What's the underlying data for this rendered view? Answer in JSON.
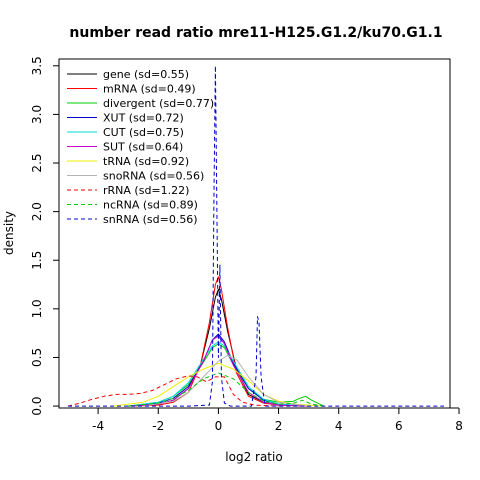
{
  "chart_data": {
    "type": "line",
    "title": "number read ratio mre11-H125.G1.2/ku70.G1.1",
    "xlabel": "log2 ratio",
    "ylabel": "density",
    "xlim": [
      -5.3,
      7.7
    ],
    "ylim": [
      -0.02,
      3.57
    ],
    "xticks": [
      -4,
      -2,
      0,
      2,
      4,
      6,
      8
    ],
    "yticks": [
      0.0,
      0.5,
      1.0,
      1.5,
      2.0,
      2.5,
      3.0,
      3.5
    ],
    "xtick_labels": [
      "-4",
      "-2",
      "0",
      "2",
      "4",
      "6",
      "8"
    ],
    "ytick_labels": [
      "0.0",
      "0.5",
      "1.0",
      "1.5",
      "2.0",
      "2.5",
      "3.0",
      "3.5"
    ],
    "grid": false,
    "legend_position": "top-left",
    "series": [
      {
        "name": "gene (sd=0.55)",
        "color": "#000000",
        "dash": "solid",
        "x": [
          -3.0,
          -2.0,
          -1.5,
          -1.0,
          -0.6,
          -0.3,
          -0.1,
          0.0,
          0.1,
          0.3,
          0.6,
          1.0,
          1.5,
          2.0,
          3.0
        ],
        "y": [
          0.0,
          0.02,
          0.06,
          0.18,
          0.42,
          0.8,
          1.12,
          1.2,
          1.1,
          0.78,
          0.38,
          0.12,
          0.04,
          0.01,
          0.0
        ]
      },
      {
        "name": "mRNA (sd=0.49)",
        "color": "#ff0000",
        "dash": "solid",
        "x": [
          -3.0,
          -2.0,
          -1.5,
          -1.0,
          -0.6,
          -0.3,
          -0.1,
          0.0,
          0.1,
          0.3,
          0.6,
          1.0,
          1.5,
          2.0,
          3.0
        ],
        "y": [
          0.0,
          0.01,
          0.04,
          0.14,
          0.42,
          0.86,
          1.25,
          1.33,
          1.2,
          0.82,
          0.34,
          0.1,
          0.03,
          0.01,
          0.0
        ]
      },
      {
        "name": "divergent (sd=0.77)",
        "color": "#00cc00",
        "dash": "solid",
        "x": [
          -3.0,
          -2.0,
          -1.5,
          -1.0,
          -0.5,
          -0.2,
          0.0,
          0.2,
          0.5,
          1.0,
          1.5,
          2.0,
          2.5,
          2.7,
          2.9,
          3.1,
          3.5
        ],
        "y": [
          0.0,
          0.04,
          0.1,
          0.22,
          0.45,
          0.6,
          0.64,
          0.6,
          0.42,
          0.18,
          0.07,
          0.04,
          0.05,
          0.08,
          0.1,
          0.06,
          0.0
        ]
      },
      {
        "name": "XUT (sd=0.72)",
        "color": "#0000cc",
        "dash": "solid",
        "x": [
          -3.0,
          -2.0,
          -1.5,
          -1.0,
          -0.5,
          -0.2,
          0.0,
          0.2,
          0.5,
          1.0,
          1.5,
          2.0,
          3.0
        ],
        "y": [
          0.0,
          0.03,
          0.08,
          0.2,
          0.46,
          0.68,
          0.74,
          0.66,
          0.44,
          0.18,
          0.06,
          0.02,
          0.0
        ]
      },
      {
        "name": "CUT (sd=0.75)",
        "color": "#00dddd",
        "dash": "solid",
        "x": [
          -3.0,
          -2.0,
          -1.5,
          -1.0,
          -0.5,
          -0.2,
          0.0,
          0.2,
          0.5,
          1.0,
          1.5,
          2.0,
          3.0
        ],
        "y": [
          0.0,
          0.04,
          0.1,
          0.24,
          0.48,
          0.62,
          0.66,
          0.62,
          0.46,
          0.2,
          0.07,
          0.02,
          0.0
        ]
      },
      {
        "name": "SUT (sd=0.64)",
        "color": "#cc00cc",
        "dash": "solid",
        "x": [
          -3.0,
          -2.0,
          -1.5,
          -1.0,
          -0.5,
          -0.2,
          0.0,
          0.2,
          0.5,
          1.0,
          1.5,
          2.0,
          3.0
        ],
        "y": [
          0.0,
          0.02,
          0.06,
          0.18,
          0.46,
          0.68,
          0.72,
          0.64,
          0.42,
          0.14,
          0.04,
          0.01,
          0.0
        ]
      },
      {
        "name": "tRNA (sd=0.92)",
        "color": "#eeee00",
        "dash": "solid",
        "x": [
          -3.5,
          -2.5,
          -2.0,
          -1.5,
          -1.0,
          -0.5,
          0.0,
          0.5,
          1.0,
          1.5,
          2.0,
          2.5,
          3.5
        ],
        "y": [
          0.0,
          0.04,
          0.1,
          0.2,
          0.3,
          0.38,
          0.44,
          0.38,
          0.26,
          0.12,
          0.05,
          0.02,
          0.0
        ]
      },
      {
        "name": "snoRNA (sd=0.56)",
        "color": "#b4b4b4",
        "dash": "solid",
        "x": [
          -2.5,
          -1.5,
          -1.0,
          -0.5,
          0.0,
          0.3,
          0.6,
          1.0,
          1.5,
          2.0,
          3.0
        ],
        "y": [
          0.0,
          0.05,
          0.14,
          0.3,
          0.46,
          0.52,
          0.48,
          0.3,
          0.12,
          0.04,
          0.0
        ]
      },
      {
        "name": "rRNA (sd=1.22)",
        "color": "#ff0000",
        "dash": "dashed",
        "x": [
          -5.0,
          -4.6,
          -4.2,
          -3.8,
          -3.4,
          -3.0,
          -2.6,
          -2.2,
          -1.8,
          -1.4,
          -1.0,
          -0.7,
          -0.4,
          -0.1,
          0.2,
          0.5,
          0.8,
          1.2,
          2.0
        ],
        "y": [
          0.0,
          0.03,
          0.07,
          0.1,
          0.12,
          0.12,
          0.13,
          0.16,
          0.22,
          0.28,
          0.31,
          0.3,
          0.25,
          0.3,
          0.3,
          0.12,
          0.04,
          0.01,
          0.0
        ]
      },
      {
        "name": "ncRNA (sd=0.89)",
        "color": "#00cc00",
        "dash": "dashed",
        "x": [
          -3.0,
          -2.0,
          -1.5,
          -1.0,
          -0.5,
          0.0,
          0.5,
          1.0,
          1.5,
          2.0,
          2.5,
          2.8,
          3.1,
          3.5
        ],
        "y": [
          0.0,
          0.03,
          0.08,
          0.16,
          0.28,
          0.34,
          0.28,
          0.14,
          0.05,
          0.02,
          0.03,
          0.06,
          0.02,
          0.0
        ]
      },
      {
        "name": "snRNA (sd=0.56)",
        "color": "#0000cc",
        "dash": "dashed",
        "x": [
          -5.0,
          -1.0,
          -0.3,
          -0.2,
          -0.15,
          -0.1,
          -0.05,
          0.0,
          0.05,
          0.1,
          0.2,
          0.4,
          1.1,
          1.25,
          1.3,
          1.35,
          1.42,
          1.55,
          2.0,
          7.5
        ],
        "y": [
          0.0,
          0.0,
          0.01,
          0.25,
          2.1,
          3.5,
          2.0,
          0.5,
          1.45,
          0.3,
          0.03,
          0.0,
          0.0,
          0.3,
          0.92,
          0.86,
          0.3,
          0.0,
          0.0,
          0.0
        ]
      }
    ]
  }
}
